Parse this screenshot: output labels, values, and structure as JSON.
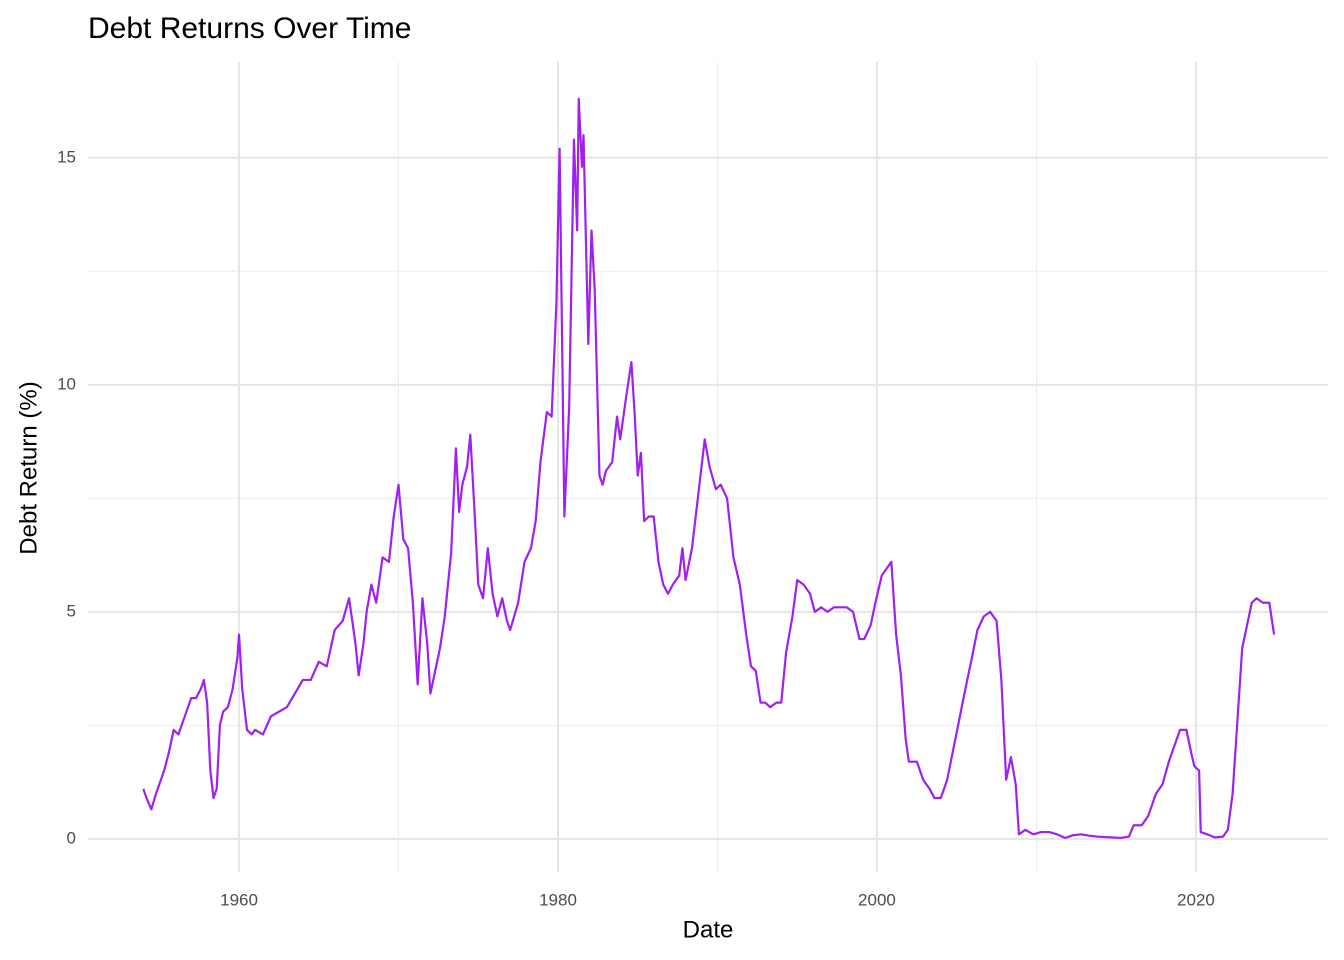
{
  "chart_data": {
    "type": "line",
    "title": "Debt Returns Over Time",
    "x_label": "Date",
    "y_label": "Debt Return (%)",
    "grid": true,
    "xlim": [
      1950.53,
      2028.28
    ],
    "ylim": [
      -0.73,
      17.11
    ],
    "xticks": [
      1960,
      1980,
      2000,
      2020
    ],
    "yticks": [
      0,
      5,
      10,
      15
    ],
    "x": [
      1954.0,
      1954.2,
      1954.5,
      1954.8,
      1955.0,
      1955.3,
      1955.6,
      1955.9,
      1956.2,
      1956.5,
      1956.8,
      1957.0,
      1957.3,
      1957.6,
      1957.8,
      1958.0,
      1958.2,
      1958.4,
      1958.6,
      1958.8,
      1959.0,
      1959.3,
      1959.6,
      1959.9,
      1960.0,
      1960.2,
      1960.5,
      1960.8,
      1961.0,
      1961.5,
      1962.0,
      1962.5,
      1963.0,
      1963.5,
      1964.0,
      1964.5,
      1965.0,
      1965.5,
      1966.0,
      1966.5,
      1966.9,
      1967.3,
      1967.5,
      1967.8,
      1968.0,
      1968.3,
      1968.6,
      1969.0,
      1969.4,
      1969.7,
      1970.0,
      1970.3,
      1970.6,
      1970.9,
      1971.2,
      1971.5,
      1971.8,
      1972.0,
      1972.3,
      1972.6,
      1972.9,
      1973.3,
      1973.6,
      1973.8,
      1974.0,
      1974.3,
      1974.5,
      1974.8,
      1975.0,
      1975.3,
      1975.6,
      1975.9,
      1976.2,
      1976.5,
      1976.8,
      1977.0,
      1977.5,
      1977.9,
      1978.3,
      1978.6,
      1978.9,
      1979.3,
      1979.6,
      1979.9,
      1980.1,
      1980.4,
      1980.7,
      1981.0,
      1981.2,
      1981.3,
      1981.5,
      1981.6,
      1981.9,
      1982.1,
      1982.3,
      1982.6,
      1982.8,
      1983.0,
      1983.4,
      1983.7,
      1983.9,
      1984.3,
      1984.6,
      1984.8,
      1985.0,
      1985.2,
      1985.4,
      1985.7,
      1986.0,
      1986.3,
      1986.6,
      1986.9,
      1987.2,
      1987.6,
      1987.8,
      1988.0,
      1988.4,
      1988.8,
      1989.2,
      1989.5,
      1989.9,
      1990.2,
      1990.6,
      1991.0,
      1991.4,
      1991.8,
      1992.1,
      1992.4,
      1992.7,
      1993.0,
      1993.3,
      1993.7,
      1994.0,
      1994.3,
      1994.7,
      1995.0,
      1995.4,
      1995.8,
      1996.1,
      1996.5,
      1996.9,
      1997.3,
      1997.7,
      1998.1,
      1998.5,
      1998.9,
      1999.2,
      1999.6,
      1999.9,
      2000.3,
      2000.7,
      2000.9,
      2001.2,
      2001.5,
      2001.8,
      2002.0,
      2002.5,
      2002.9,
      2003.3,
      2003.6,
      2004.0,
      2004.4,
      2004.8,
      2005.2,
      2005.6,
      2005.9,
      2006.3,
      2006.7,
      2007.1,
      2007.5,
      2007.8,
      2008.1,
      2008.4,
      2008.7,
      2008.9,
      2009.3,
      2009.8,
      2010.3,
      2010.8,
      2011.3,
      2011.8,
      2012.3,
      2012.8,
      2013.3,
      2013.8,
      2014.3,
      2014.8,
      2015.3,
      2015.8,
      2016.1,
      2016.6,
      2017.0,
      2017.5,
      2017.9,
      2018.3,
      2018.7,
      2019.0,
      2019.4,
      2019.7,
      2019.9,
      2020.2,
      2020.3,
      2020.7,
      2021.2,
      2021.7,
      2022.0,
      2022.3,
      2022.6,
      2022.9,
      2023.2,
      2023.5,
      2023.8,
      2024.2,
      2024.6,
      2024.9
    ],
    "series": [
      {
        "name": "Debt Return",
        "color": "#a020f0",
        "values": [
          1.1,
          0.9,
          0.65,
          1.0,
          1.2,
          1.5,
          1.9,
          2.4,
          2.3,
          2.6,
          2.9,
          3.1,
          3.1,
          3.3,
          3.5,
          3.0,
          1.5,
          0.9,
          1.1,
          2.5,
          2.8,
          2.9,
          3.3,
          4.0,
          4.5,
          3.3,
          2.4,
          2.3,
          2.4,
          2.3,
          2.7,
          2.8,
          2.9,
          3.2,
          3.5,
          3.5,
          3.9,
          3.8,
          4.6,
          4.8,
          5.3,
          4.3,
          3.6,
          4.3,
          5.0,
          5.6,
          5.2,
          6.2,
          6.1,
          7.1,
          7.8,
          6.6,
          6.4,
          5.2,
          3.4,
          5.3,
          4.3,
          3.2,
          3.7,
          4.2,
          4.9,
          6.3,
          8.6,
          7.2,
          7.8,
          8.2,
          8.9,
          7.0,
          5.6,
          5.3,
          6.4,
          5.4,
          4.9,
          5.3,
          4.8,
          4.6,
          5.2,
          6.1,
          6.4,
          7.0,
          8.3,
          9.4,
          9.3,
          11.8,
          15.2,
          7.1,
          9.5,
          15.4,
          13.4,
          16.3,
          14.8,
          15.5,
          10.9,
          13.4,
          12.1,
          8.0,
          7.8,
          8.1,
          8.3,
          9.3,
          8.8,
          9.8,
          10.5,
          9.4,
          8.0,
          8.5,
          7.0,
          7.1,
          7.1,
          6.1,
          5.6,
          5.4,
          5.6,
          5.8,
          6.4,
          5.7,
          6.4,
          7.6,
          8.8,
          8.2,
          7.7,
          7.8,
          7.5,
          6.2,
          5.6,
          4.5,
          3.8,
          3.7,
          3.0,
          3.0,
          2.9,
          3.0,
          3.0,
          4.1,
          4.9,
          5.7,
          5.6,
          5.4,
          5.0,
          5.1,
          5.0,
          5.1,
          5.1,
          5.1,
          5.0,
          4.4,
          4.4,
          4.7,
          5.2,
          5.8,
          6.0,
          6.1,
          4.5,
          3.6,
          2.2,
          1.7,
          1.7,
          1.3,
          1.1,
          0.9,
          0.9,
          1.3,
          2.0,
          2.7,
          3.4,
          3.9,
          4.6,
          4.9,
          5.0,
          4.8,
          3.5,
          1.3,
          1.8,
          1.2,
          0.1,
          0.2,
          0.1,
          0.15,
          0.15,
          0.1,
          0.02,
          0.08,
          0.1,
          0.07,
          0.05,
          0.04,
          0.03,
          0.02,
          0.05,
          0.3,
          0.3,
          0.5,
          1.0,
          1.2,
          1.7,
          2.1,
          2.4,
          2.4,
          1.9,
          1.6,
          1.5,
          0.15,
          0.1,
          0.03,
          0.05,
          0.2,
          1.0,
          2.6,
          4.2,
          4.7,
          5.2,
          5.3,
          5.2,
          5.2,
          4.5
        ]
      }
    ]
  }
}
